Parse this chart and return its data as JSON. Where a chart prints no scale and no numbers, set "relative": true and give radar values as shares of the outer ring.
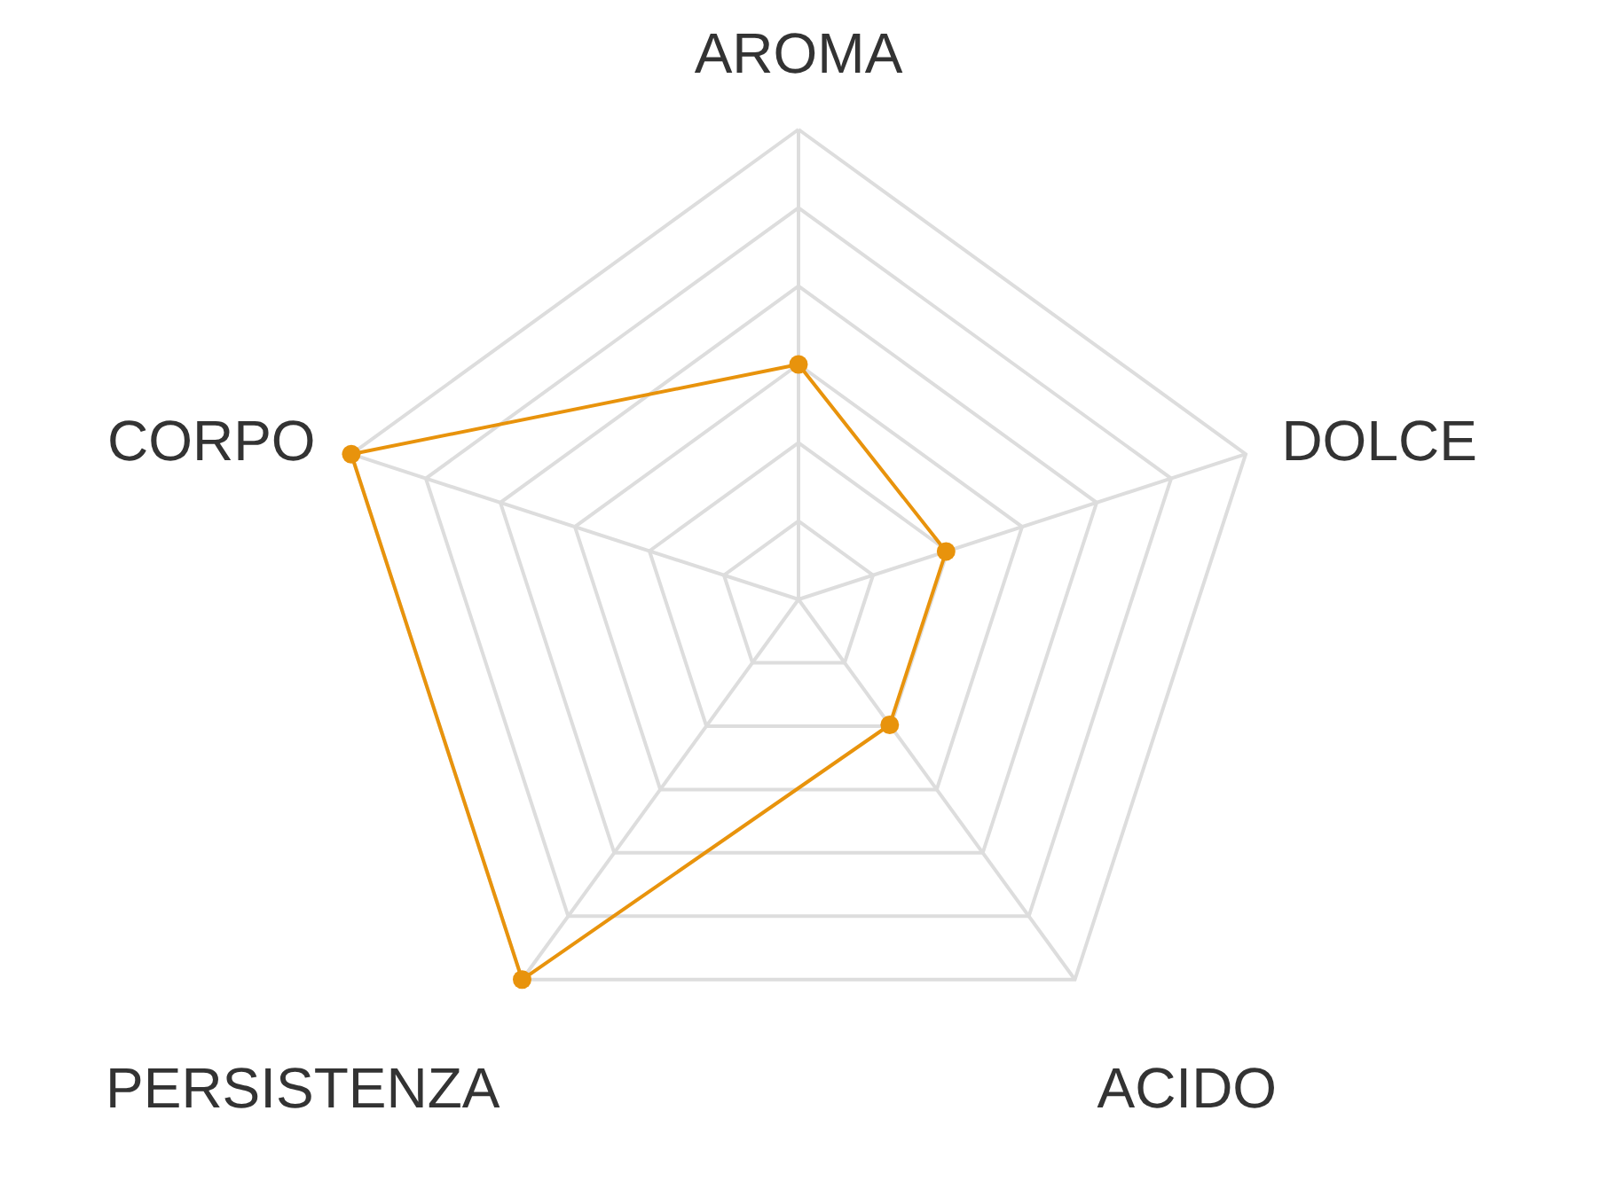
{
  "chart_data": {
    "type": "radar",
    "relative": true,
    "grid": true,
    "marker": "circle",
    "categories": [
      "AROMA",
      "DOLCE",
      "ACIDO",
      "PERSISTENZA",
      "CORPO"
    ],
    "series": [
      {
        "color": "#e8930c",
        "values": [
          0.5,
          0.33,
          0.33,
          1,
          1
        ]
      }
    ]
  }
}
